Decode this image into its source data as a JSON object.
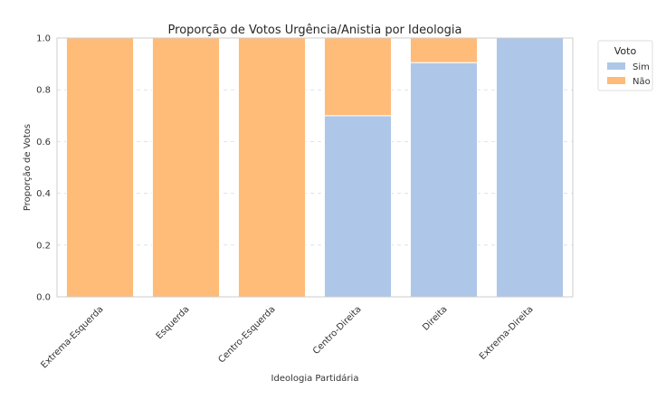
{
  "chart_data": {
    "type": "bar",
    "stacked": true,
    "title": "Proporção de Votos Urgência/Anistia por Ideologia",
    "xlabel": "Ideologia Partidária",
    "ylabel": "Proporção de Votos",
    "ylim": [
      0,
      1.0
    ],
    "yticks": [
      "0.0",
      "0.2",
      "0.4",
      "0.6",
      "0.8",
      "1.0"
    ],
    "grid": "y",
    "legend": {
      "title": "Voto",
      "placement": "outside-top-right"
    },
    "categories": [
      "Extrema-Esquerda",
      "Esquerda",
      "Centro-Esquerda",
      "Centro-Direita",
      "Direita",
      "Extrema-Direita"
    ],
    "series": [
      {
        "name": "Sim",
        "color": "#aec7e8",
        "values": [
          0.0,
          0.0,
          0.0,
          0.7,
          0.905,
          1.0
        ]
      },
      {
        "name": "Não",
        "color": "#ffbb78",
        "values": [
          1.0,
          1.0,
          1.0,
          0.3,
          0.095,
          0.0
        ]
      }
    ]
  }
}
